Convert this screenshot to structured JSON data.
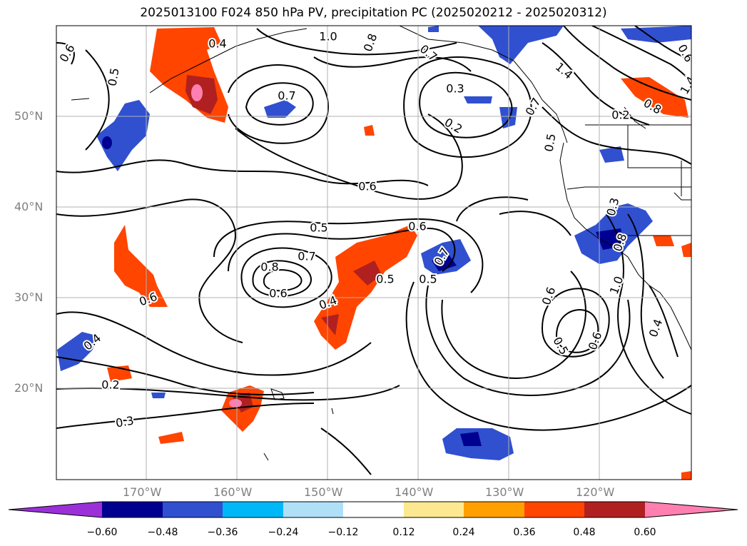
{
  "title": "2025013100 F024 850 hPa PV, precipitation PC (2025020212 - 2025020312)",
  "map": {
    "lat_labels": [
      "50°N",
      "40°N",
      "30°N",
      "20°N"
    ],
    "lon_labels": [
      "170°W",
      "160°W",
      "150°W",
      "140°W",
      "130°W",
      "120°W"
    ],
    "contour_labels": [
      "0.6",
      "1.0",
      "0.4",
      "0.8",
      "0.7",
      "0.5",
      "0.7",
      "0.3",
      "0.2",
      "0.6",
      "0.5",
      "0.6",
      "0.7",
      "0.8",
      "0.6",
      "0.5",
      "0.4",
      "0.6",
      "0.7",
      "0.5",
      "0.4",
      "0.2",
      "0.3",
      "0.2",
      "0.5",
      "0.7",
      "0.8",
      "0.6",
      "0.3",
      "0.5",
      "0.6",
      "1.0",
      "0.6",
      "1.4",
      "1.4",
      "0.8",
      "0.4"
    ]
  },
  "colorbar": {
    "tick_labels": [
      "−0.60",
      "−0.48",
      "−0.36",
      "−0.24",
      "−0.12",
      "0.12",
      "0.24",
      "0.36",
      "0.48",
      "0.60"
    ],
    "colors": [
      "#9b30d9",
      "#000090",
      "#3050d0",
      "#00b8f8",
      "#b0e0f8",
      "#ffffff",
      "#fce890",
      "#ffa000",
      "#ff4500",
      "#b02020",
      "#ff80b0"
    ]
  },
  "palette": {
    "red_dark": "#b02020",
    "red": "#ff4500",
    "orange": "#ffa000",
    "yellow": "#fce890",
    "pink": "#ff80b0",
    "navy": "#000090",
    "blue": "#3050d0",
    "cyan": "#00b8f8",
    "lightblue": "#b0e0f8"
  }
}
